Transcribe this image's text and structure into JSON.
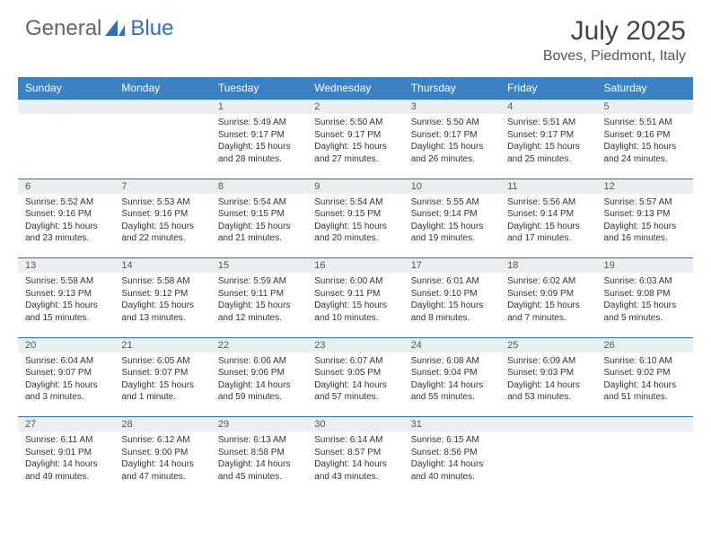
{
  "brand": {
    "part1": "General",
    "part2": "Blue"
  },
  "title": "July 2025",
  "location": "Boves, Piedmont, Italy",
  "colors": {
    "header_bg": "#3b82c4",
    "border": "#2f71b8",
    "daynum_bg": "#eceff1",
    "text": "#333333",
    "brand_gray": "#666666",
    "brand_blue": "#2f71b8"
  },
  "weekdays": [
    "Sunday",
    "Monday",
    "Tuesday",
    "Wednesday",
    "Thursday",
    "Friday",
    "Saturday"
  ],
  "weeks": [
    [
      null,
      null,
      {
        "n": "1",
        "sr": "5:49 AM",
        "ss": "9:17 PM",
        "dl": "15 hours and 28 minutes."
      },
      {
        "n": "2",
        "sr": "5:50 AM",
        "ss": "9:17 PM",
        "dl": "15 hours and 27 minutes."
      },
      {
        "n": "3",
        "sr": "5:50 AM",
        "ss": "9:17 PM",
        "dl": "15 hours and 26 minutes."
      },
      {
        "n": "4",
        "sr": "5:51 AM",
        "ss": "9:17 PM",
        "dl": "15 hours and 25 minutes."
      },
      {
        "n": "5",
        "sr": "5:51 AM",
        "ss": "9:16 PM",
        "dl": "15 hours and 24 minutes."
      }
    ],
    [
      {
        "n": "6",
        "sr": "5:52 AM",
        "ss": "9:16 PM",
        "dl": "15 hours and 23 minutes."
      },
      {
        "n": "7",
        "sr": "5:53 AM",
        "ss": "9:16 PM",
        "dl": "15 hours and 22 minutes."
      },
      {
        "n": "8",
        "sr": "5:54 AM",
        "ss": "9:15 PM",
        "dl": "15 hours and 21 minutes."
      },
      {
        "n": "9",
        "sr": "5:54 AM",
        "ss": "9:15 PM",
        "dl": "15 hours and 20 minutes."
      },
      {
        "n": "10",
        "sr": "5:55 AM",
        "ss": "9:14 PM",
        "dl": "15 hours and 19 minutes."
      },
      {
        "n": "11",
        "sr": "5:56 AM",
        "ss": "9:14 PM",
        "dl": "15 hours and 17 minutes."
      },
      {
        "n": "12",
        "sr": "5:57 AM",
        "ss": "9:13 PM",
        "dl": "15 hours and 16 minutes."
      }
    ],
    [
      {
        "n": "13",
        "sr": "5:58 AM",
        "ss": "9:13 PM",
        "dl": "15 hours and 15 minutes."
      },
      {
        "n": "14",
        "sr": "5:58 AM",
        "ss": "9:12 PM",
        "dl": "15 hours and 13 minutes."
      },
      {
        "n": "15",
        "sr": "5:59 AM",
        "ss": "9:11 PM",
        "dl": "15 hours and 12 minutes."
      },
      {
        "n": "16",
        "sr": "6:00 AM",
        "ss": "9:11 PM",
        "dl": "15 hours and 10 minutes."
      },
      {
        "n": "17",
        "sr": "6:01 AM",
        "ss": "9:10 PM",
        "dl": "15 hours and 8 minutes."
      },
      {
        "n": "18",
        "sr": "6:02 AM",
        "ss": "9:09 PM",
        "dl": "15 hours and 7 minutes."
      },
      {
        "n": "19",
        "sr": "6:03 AM",
        "ss": "9:08 PM",
        "dl": "15 hours and 5 minutes."
      }
    ],
    [
      {
        "n": "20",
        "sr": "6:04 AM",
        "ss": "9:07 PM",
        "dl": "15 hours and 3 minutes."
      },
      {
        "n": "21",
        "sr": "6:05 AM",
        "ss": "9:07 PM",
        "dl": "15 hours and 1 minute."
      },
      {
        "n": "22",
        "sr": "6:06 AM",
        "ss": "9:06 PM",
        "dl": "14 hours and 59 minutes."
      },
      {
        "n": "23",
        "sr": "6:07 AM",
        "ss": "9:05 PM",
        "dl": "14 hours and 57 minutes."
      },
      {
        "n": "24",
        "sr": "6:08 AM",
        "ss": "9:04 PM",
        "dl": "14 hours and 55 minutes."
      },
      {
        "n": "25",
        "sr": "6:09 AM",
        "ss": "9:03 PM",
        "dl": "14 hours and 53 minutes."
      },
      {
        "n": "26",
        "sr": "6:10 AM",
        "ss": "9:02 PM",
        "dl": "14 hours and 51 minutes."
      }
    ],
    [
      {
        "n": "27",
        "sr": "6:11 AM",
        "ss": "9:01 PM",
        "dl": "14 hours and 49 minutes."
      },
      {
        "n": "28",
        "sr": "6:12 AM",
        "ss": "9:00 PM",
        "dl": "14 hours and 47 minutes."
      },
      {
        "n": "29",
        "sr": "6:13 AM",
        "ss": "8:58 PM",
        "dl": "14 hours and 45 minutes."
      },
      {
        "n": "30",
        "sr": "6:14 AM",
        "ss": "8:57 PM",
        "dl": "14 hours and 43 minutes."
      },
      {
        "n": "31",
        "sr": "6:15 AM",
        "ss": "8:56 PM",
        "dl": "14 hours and 40 minutes."
      },
      null,
      null
    ]
  ],
  "labels": {
    "sunrise": "Sunrise:",
    "sunset": "Sunset:",
    "daylight": "Daylight:"
  }
}
